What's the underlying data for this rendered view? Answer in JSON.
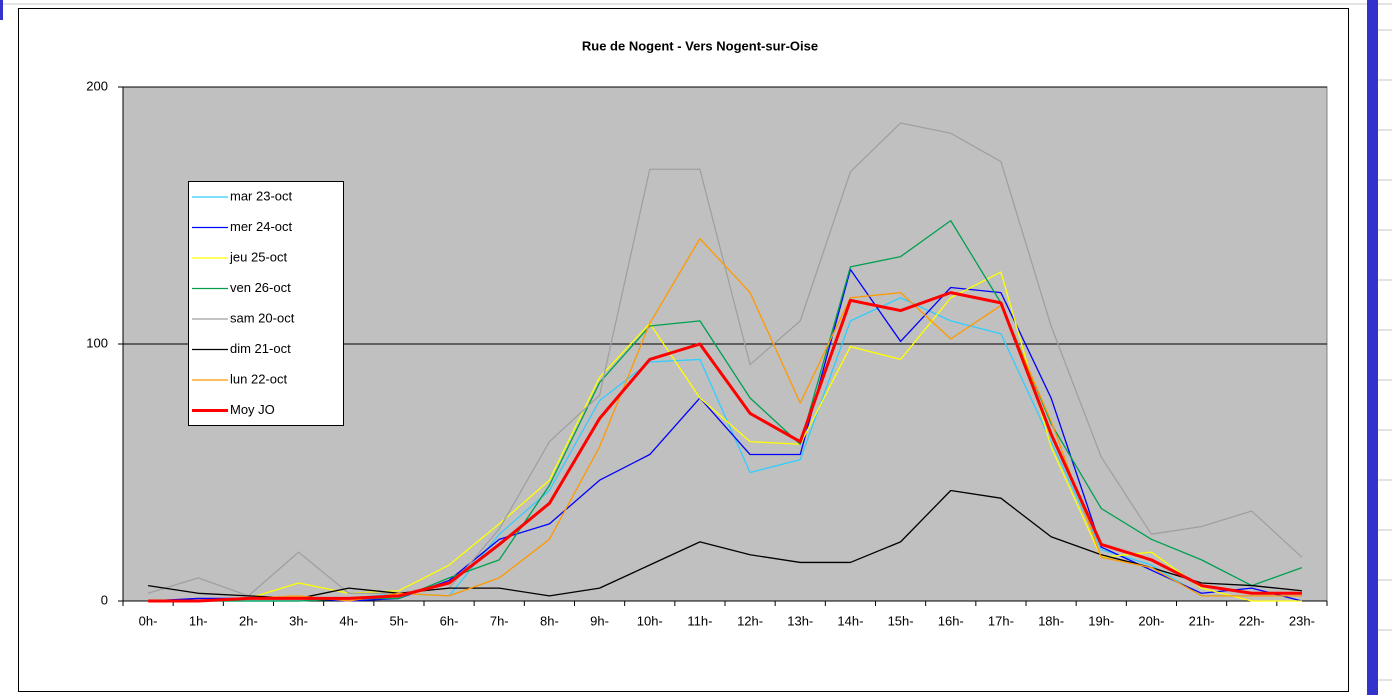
{
  "chart_data": {
    "type": "line",
    "title": "Rue de Nogent - Vers Nogent-sur-Oise",
    "categories": [
      "0h-",
      "1h-",
      "2h-",
      "3h-",
      "4h-",
      "5h-",
      "6h-",
      "7h-",
      "8h-",
      "9h-",
      "10h-",
      "11h-",
      "12h-",
      "13h-",
      "14h-",
      "15h-",
      "16h-",
      "17h-",
      "18h-",
      "19h-",
      "20h-",
      "21h-",
      "22h-",
      "23h-"
    ],
    "ylim": [
      0,
      200
    ],
    "yticks": [
      0,
      100,
      200
    ],
    "grid": true,
    "legend": "left",
    "series": [
      {
        "name": "mar 23-oct",
        "color": "#33ccff",
        "values": [
          0,
          0,
          0,
          0,
          1,
          3,
          2,
          26,
          43,
          78,
          93,
          94,
          50,
          55,
          109,
          118,
          109,
          104,
          62,
          20,
          14,
          2,
          2,
          2
        ]
      },
      {
        "name": "mer 24-oct",
        "color": "#0000ff",
        "values": [
          0,
          1,
          1,
          1,
          0,
          1,
          8,
          24,
          30,
          47,
          57,
          79,
          57,
          57,
          129,
          101,
          122,
          120,
          79,
          21,
          12,
          3,
          5,
          0
        ]
      },
      {
        "name": "jeu 25-oct",
        "color": "#ffff00",
        "values": [
          0,
          0,
          1,
          7,
          3,
          4,
          14,
          30,
          47,
          87,
          108,
          79,
          62,
          61,
          99,
          94,
          118,
          128,
          60,
          17,
          19,
          5,
          0,
          0
        ]
      },
      {
        "name": "ven 26-oct",
        "color": "#00a050",
        "values": [
          0,
          0,
          0,
          0,
          1,
          1,
          9,
          16,
          45,
          85,
          107,
          109,
          79,
          61,
          130,
          134,
          148,
          116,
          69,
          36,
          24,
          16,
          6,
          13
        ]
      },
      {
        "name": "sam 20-oct",
        "color": "#a0a0a0",
        "values": [
          3,
          9,
          2,
          19,
          3,
          3,
          5,
          28,
          62,
          80,
          168,
          168,
          92,
          109,
          167,
          186,
          182,
          171,
          107,
          56,
          26,
          29,
          35,
          17
        ]
      },
      {
        "name": "dim 21-oct",
        "color": "#000000",
        "values": [
          6,
          3,
          2,
          1,
          5,
          3,
          5,
          5,
          2,
          5,
          14,
          23,
          18,
          15,
          15,
          23,
          43,
          40,
          25,
          18,
          13,
          7,
          6,
          4
        ]
      },
      {
        "name": "lun 22-oct",
        "color": "#ff9900",
        "values": [
          0,
          0,
          1,
          2,
          0,
          3,
          2,
          9,
          24,
          60,
          108,
          141,
          120,
          77,
          118,
          120,
          102,
          115,
          70,
          17,
          13,
          2,
          2,
          2
        ]
      },
      {
        "name": "Moy JO",
        "color": "#ff0000",
        "values": [
          0,
          0,
          1,
          1,
          1,
          2,
          7,
          22,
          38,
          71,
          94,
          100,
          73,
          62,
          117,
          113,
          120,
          116,
          65,
          22,
          16,
          6,
          3,
          3
        ]
      }
    ]
  }
}
